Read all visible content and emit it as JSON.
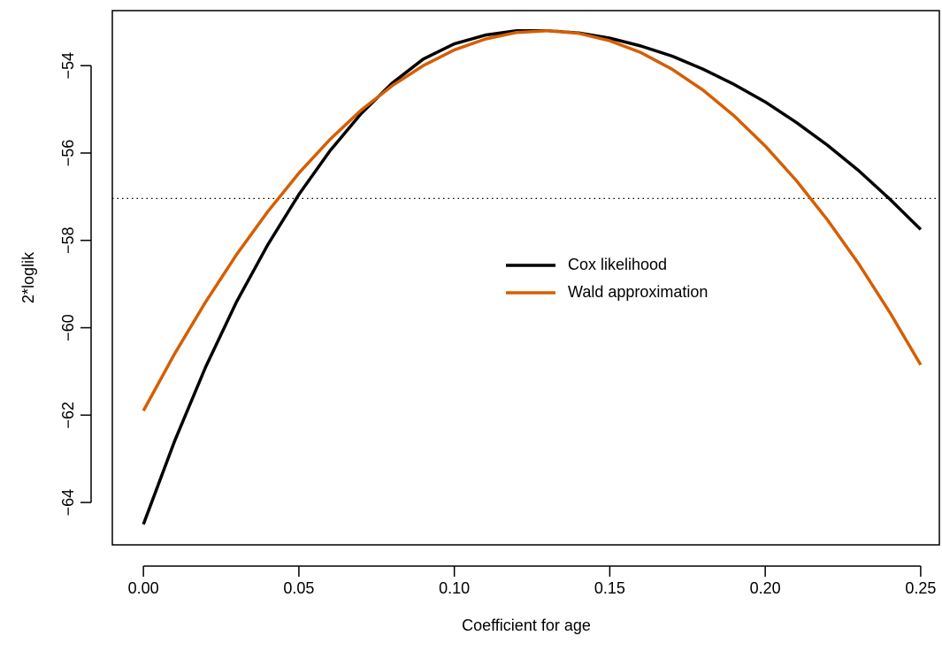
{
  "chart_data": {
    "type": "line",
    "xlabel": "Coefficient for age",
    "ylabel": "2*loglik",
    "x": [
      0,
      0.01,
      0.02,
      0.03,
      0.04,
      0.05,
      0.06,
      0.07,
      0.08,
      0.09,
      0.1,
      0.11,
      0.12,
      0.13,
      0.14,
      0.15,
      0.16,
      0.17,
      0.18,
      0.19,
      0.2,
      0.21,
      0.22,
      0.23,
      0.24,
      0.25
    ],
    "series": [
      {
        "name": "Cox likelihood",
        "color": "#000000",
        "values": [
          -64.5,
          -62.6,
          -60.9,
          -59.4,
          -58.1,
          -56.95,
          -55.95,
          -55.1,
          -54.4,
          -53.85,
          -53.5,
          -53.3,
          -53.2,
          -53.2,
          -53.25,
          -53.37,
          -53.55,
          -53.78,
          -54.08,
          -54.43,
          -54.83,
          -55.3,
          -55.82,
          -56.4,
          -57.05,
          -57.75
        ]
      },
      {
        "name": "Wald approximation",
        "color": "#d55e00",
        "values": [
          -61.9,
          -60.6,
          -59.41,
          -58.32,
          -57.34,
          -56.46,
          -55.69,
          -55.02,
          -54.46,
          -54.0,
          -53.64,
          -53.39,
          -53.24,
          -53.2,
          -53.26,
          -53.43,
          -53.7,
          -54.08,
          -54.56,
          -55.15,
          -55.84,
          -56.63,
          -57.53,
          -58.53,
          -59.64,
          -60.85
        ]
      }
    ],
    "reference_line": -57.04,
    "xlim": [
      -0.01,
      0.256
    ],
    "ylim": [
      -64.97,
      -52.74
    ],
    "xticks": [
      {
        "value": 0,
        "label": "0.00"
      },
      {
        "value": 0.05,
        "label": "0.05"
      },
      {
        "value": 0.1,
        "label": "0.10"
      },
      {
        "value": 0.15,
        "label": "0.15"
      },
      {
        "value": 0.2,
        "label": "0.20"
      },
      {
        "value": 0.25,
        "label": "0.25"
      }
    ],
    "yticks": [
      {
        "value": -64,
        "label": "−64"
      },
      {
        "value": -62,
        "label": "−62"
      },
      {
        "value": -60,
        "label": "−60"
      },
      {
        "value": -58,
        "label": "−58"
      },
      {
        "value": -56,
        "label": "−56"
      },
      {
        "value": -54,
        "label": "−54"
      }
    ]
  }
}
